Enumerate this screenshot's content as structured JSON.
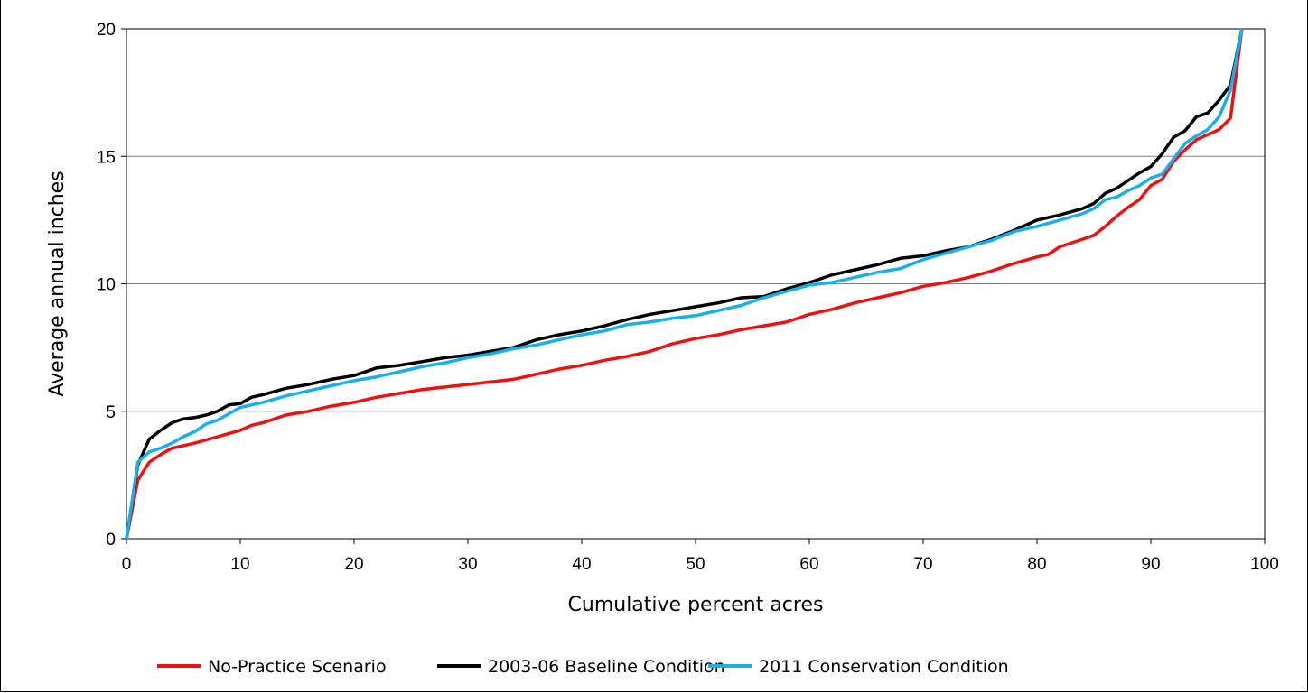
{
  "chart_data": {
    "type": "line",
    "title": "",
    "xlabel": "Cumulative percent acres",
    "ylabel": "Average annual inches",
    "xlim": [
      0,
      100
    ],
    "ylim": [
      0,
      20
    ],
    "xticks": [
      0,
      10,
      20,
      30,
      40,
      50,
      60,
      70,
      80,
      90,
      100
    ],
    "yticks": [
      0,
      5,
      10,
      15,
      20
    ],
    "grid": "horizontal",
    "legend_position": "bottom",
    "series": [
      {
        "name": "No-Practice Scenario",
        "color": "#ee1111",
        "x": [
          0,
          1,
          2,
          3,
          4,
          5,
          6,
          8,
          10,
          11,
          12,
          14,
          16,
          18,
          20,
          22,
          24,
          26,
          28,
          30,
          32,
          34,
          36,
          38,
          40,
          42,
          44,
          46,
          48,
          50,
          52,
          54,
          56,
          58,
          60,
          62,
          64,
          66,
          68,
          70,
          72,
          74,
          76,
          78,
          80,
          81,
          82,
          84,
          85,
          86,
          87,
          88,
          89,
          90,
          91,
          92,
          93,
          94,
          95,
          96,
          97,
          98
        ],
        "y": [
          0,
          2.3,
          3.0,
          3.3,
          3.55,
          3.65,
          3.75,
          4.0,
          4.25,
          4.45,
          4.55,
          4.85,
          5.0,
          5.2,
          5.35,
          5.55,
          5.7,
          5.85,
          5.95,
          6.05,
          6.15,
          6.25,
          6.45,
          6.65,
          6.8,
          7.0,
          7.15,
          7.35,
          7.65,
          7.85,
          8.0,
          8.2,
          8.35,
          8.5,
          8.8,
          9.0,
          9.25,
          9.45,
          9.65,
          9.9,
          10.05,
          10.25,
          10.5,
          10.8,
          11.05,
          11.15,
          11.45,
          11.75,
          11.9,
          12.25,
          12.65,
          13.0,
          13.3,
          13.85,
          14.1,
          14.8,
          15.25,
          15.65,
          15.85,
          16.05,
          16.5,
          20
        ]
      },
      {
        "name": "2003-06 Baseline Condition",
        "color": "#000000",
        "x": [
          0,
          1,
          2,
          3,
          4,
          5,
          6,
          7,
          8,
          9,
          10,
          11,
          12,
          14,
          16,
          18,
          20,
          22,
          24,
          26,
          28,
          30,
          32,
          34,
          36,
          38,
          40,
          42,
          44,
          46,
          48,
          50,
          52,
          54,
          56,
          58,
          60,
          62,
          64,
          66,
          68,
          70,
          72,
          74,
          76,
          78,
          80,
          82,
          84,
          85,
          86,
          87,
          88,
          89,
          90,
          91,
          92,
          93,
          94,
          95,
          96,
          97,
          98
        ],
        "y": [
          0,
          2.9,
          3.9,
          4.25,
          4.55,
          4.7,
          4.75,
          4.85,
          5.0,
          5.25,
          5.3,
          5.55,
          5.65,
          5.9,
          6.05,
          6.25,
          6.4,
          6.7,
          6.8,
          6.95,
          7.1,
          7.2,
          7.35,
          7.5,
          7.8,
          8.0,
          8.15,
          8.35,
          8.6,
          8.8,
          8.95,
          9.1,
          9.25,
          9.45,
          9.5,
          9.8,
          10.05,
          10.35,
          10.55,
          10.75,
          11.0,
          11.1,
          11.3,
          11.45,
          11.75,
          12.1,
          12.5,
          12.7,
          12.95,
          13.15,
          13.55,
          13.75,
          14.05,
          14.35,
          14.6,
          15.1,
          15.75,
          16.0,
          16.55,
          16.7,
          17.2,
          17.8,
          20
        ]
      },
      {
        "name": "2011 Conservation Condition",
        "color": "#1ab0e6",
        "x": [
          0,
          1,
          2,
          3,
          4,
          5,
          6,
          7,
          8,
          9,
          10,
          12,
          14,
          16,
          18,
          20,
          22,
          24,
          26,
          28,
          30,
          32,
          34,
          36,
          38,
          40,
          42,
          44,
          46,
          48,
          50,
          52,
          54,
          56,
          58,
          60,
          62,
          64,
          66,
          68,
          70,
          72,
          74,
          76,
          78,
          80,
          82,
          84,
          85,
          86,
          87,
          88,
          89,
          90,
          91,
          92,
          93,
          94,
          95,
          96,
          97,
          98
        ],
        "y": [
          0,
          3.0,
          3.4,
          3.55,
          3.75,
          4.0,
          4.2,
          4.5,
          4.65,
          4.9,
          5.15,
          5.35,
          5.6,
          5.8,
          6.0,
          6.2,
          6.35,
          6.55,
          6.75,
          6.9,
          7.1,
          7.25,
          7.45,
          7.6,
          7.8,
          8.0,
          8.15,
          8.4,
          8.5,
          8.65,
          8.75,
          8.95,
          9.15,
          9.45,
          9.7,
          9.95,
          10.05,
          10.25,
          10.45,
          10.6,
          10.95,
          11.2,
          11.45,
          11.7,
          12.05,
          12.25,
          12.5,
          12.75,
          12.95,
          13.3,
          13.4,
          13.65,
          13.85,
          14.15,
          14.3,
          14.9,
          15.5,
          15.8,
          16.05,
          16.55,
          17.6,
          20
        ]
      }
    ]
  }
}
